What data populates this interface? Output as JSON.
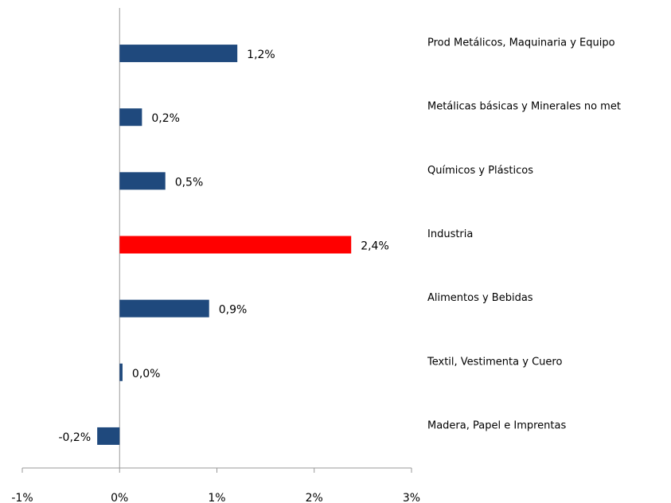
{
  "chart_data": {
    "type": "barh",
    "categories": [
      "Prod Metálicos, Maquinaria y Equipo",
      "Metálicas básicas y Minerales no met",
      "Químicos y Plásticos",
      "Industria",
      "Alimentos y Bebidas",
      "Textil, Vestimenta y Cuero",
      "Madera, Papel e Imprentas"
    ],
    "values": [
      1.21,
      0.23,
      0.47,
      2.38,
      0.92,
      0.03,
      -0.23
    ],
    "value_labels": [
      "1,2%",
      "0,2%",
      "0,5%",
      "2,4%",
      "0,9%",
      "0,0%",
      "-0,2%"
    ],
    "colors": [
      "#1f497d",
      "#1f497d",
      "#1f497d",
      "#ff0000",
      "#1f497d",
      "#1f497d",
      "#1f497d"
    ],
    "xlim": [
      -1,
      3
    ],
    "xticks": [
      {
        "value": -1,
        "label": "-1%"
      },
      {
        "value": 0,
        "label": "0%"
      },
      {
        "value": 1,
        "label": "1%"
      },
      {
        "value": 2,
        "label": "2%"
      },
      {
        "value": 3,
        "label": "3%"
      }
    ],
    "grid": false
  }
}
